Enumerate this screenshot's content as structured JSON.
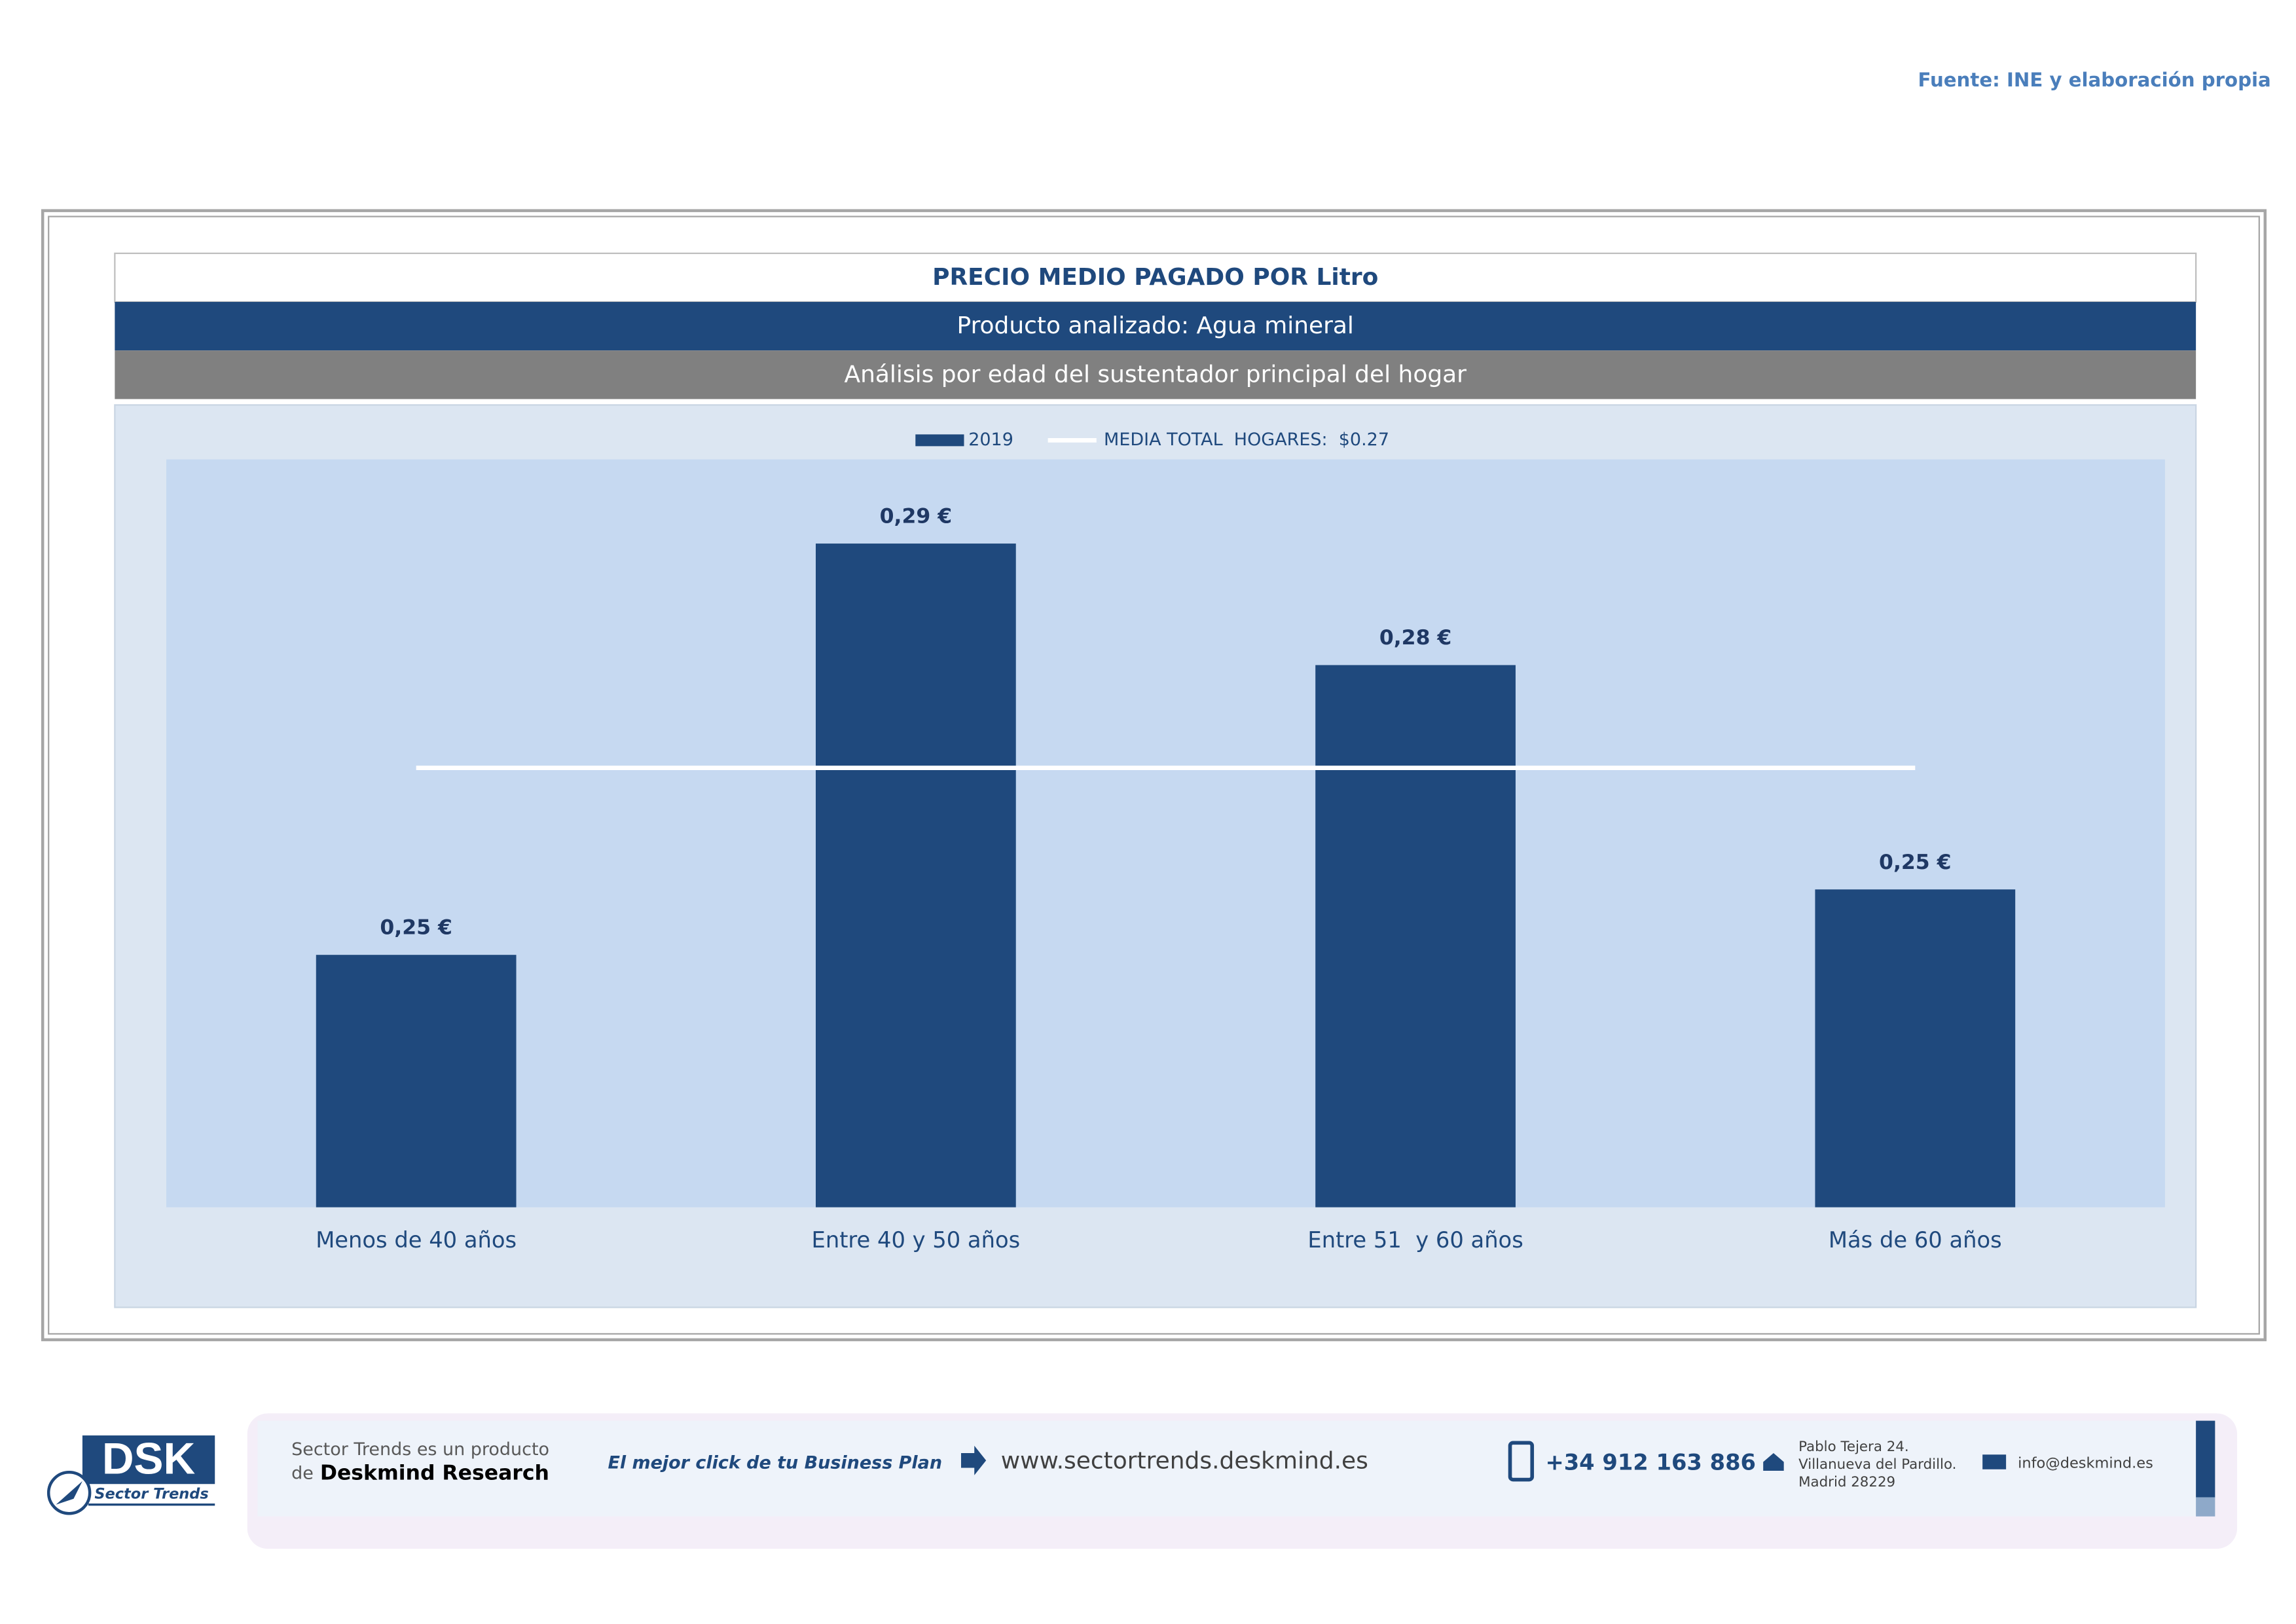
{
  "source": "Fuente: INE y elaboración propia",
  "chart_data": {
    "type": "bar",
    "title": "PRECIO MEDIO PAGADO POR Litro",
    "subtitle": "Producto analizado: Agua mineral",
    "subtitle2": "Análisis por edad del sustentador principal del hogar",
    "categories": [
      "Menos de 40 años",
      "Entre 40 y 50 años",
      "Entre 51  y 60 años",
      "Más de 60 años"
    ],
    "series": [
      {
        "name": "2019",
        "color": "#1f497d",
        "values": [
          0.247,
          0.291,
          0.278,
          0.254
        ],
        "value_labels": [
          "0,25 €",
          "0,29 €",
          "0,28 €",
          "0,25 €"
        ]
      }
    ],
    "reference_line": {
      "name": "MEDIA TOTAL  HOGARES:  $0.27",
      "value": 0.267,
      "color": "#ffffff"
    },
    "ylim": [
      0.22,
      0.3
    ],
    "legend": "top"
  },
  "footer": {
    "logo": "DSK",
    "logo_sub": "Sector Trends",
    "product": "Sector Trends es un producto",
    "de": "de",
    "company": "Deskmind Research",
    "slogan": "El mejor click de tu Business Plan",
    "web": "www.sectortrends.deskmind.es",
    "phone": "+34 912 163 886",
    "address": [
      "Pablo Tejera 24.",
      "Villanueva del Pardillo.",
      "Madrid 28229"
    ],
    "email": "info@deskmind.es"
  }
}
